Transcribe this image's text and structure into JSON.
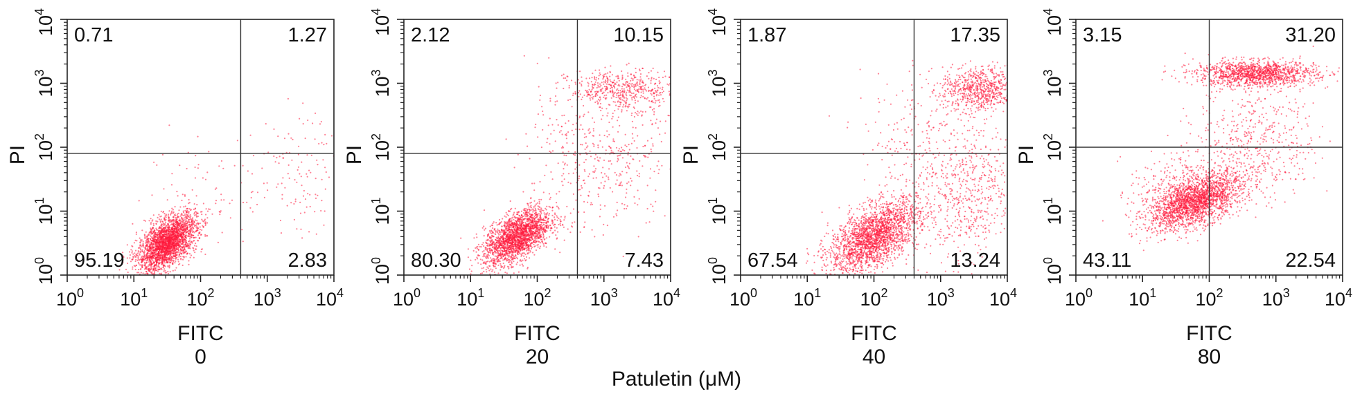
{
  "figure": {
    "xlabel": "Patuletin (μM)"
  },
  "chart_data": [
    {
      "type": "scatter",
      "xlabel": "FITC",
      "ylabel": "PI",
      "condition": "0",
      "xscale": "log",
      "yscale": "log",
      "xlim": [
        1,
        10000
      ],
      "ylim": [
        1,
        10000
      ],
      "xticks": [
        "10⁰",
        "10¹",
        "10²",
        "10³",
        "10⁴"
      ],
      "yticks": [
        "10⁰",
        "10¹",
        "10²",
        "10³",
        "10⁴"
      ],
      "gate": {
        "x": 400,
        "y": 80
      },
      "quadrants": {
        "upper_left": "0.71",
        "upper_right": "1.27",
        "lower_left": "95.19",
        "lower_right": "2.83"
      },
      "point_color": "#ff1a3c"
    },
    {
      "type": "scatter",
      "xlabel": "FITC",
      "ylabel": "PI",
      "condition": "20",
      "xscale": "log",
      "yscale": "log",
      "xlim": [
        1,
        10000
      ],
      "ylim": [
        1,
        10000
      ],
      "xticks": [
        "10⁰",
        "10¹",
        "10²",
        "10³",
        "10⁴"
      ],
      "yticks": [
        "10⁰",
        "10¹",
        "10²",
        "10³",
        "10⁴"
      ],
      "gate": {
        "x": 400,
        "y": 80
      },
      "quadrants": {
        "upper_left": "2.12",
        "upper_right": "10.15",
        "lower_left": "80.30",
        "lower_right": "7.43"
      },
      "point_color": "#ff1a3c"
    },
    {
      "type": "scatter",
      "xlabel": "FITC",
      "ylabel": "PI",
      "condition": "40",
      "xscale": "log",
      "yscale": "log",
      "xlim": [
        1,
        10000
      ],
      "ylim": [
        1,
        10000
      ],
      "xticks": [
        "10⁰",
        "10¹",
        "10²",
        "10³",
        "10⁴"
      ],
      "yticks": [
        "10⁰",
        "10¹",
        "10²",
        "10³",
        "10⁴"
      ],
      "gate": {
        "x": 400,
        "y": 80
      },
      "quadrants": {
        "upper_left": "1.87",
        "upper_right": "17.35",
        "lower_left": "67.54",
        "lower_right": "13.24"
      },
      "point_color": "#ff1a3c"
    },
    {
      "type": "scatter",
      "xlabel": "FITC",
      "ylabel": "PI",
      "condition": "80",
      "xscale": "log",
      "yscale": "log",
      "xlim": [
        1,
        10000
      ],
      "ylim": [
        1,
        10000
      ],
      "xticks": [
        "10⁰",
        "10¹",
        "10²",
        "10³",
        "10⁴"
      ],
      "yticks": [
        "10⁰",
        "10¹",
        "10²",
        "10³",
        "10⁴"
      ],
      "gate": {
        "x": 100,
        "y": 100
      },
      "quadrants": {
        "upper_left": "3.15",
        "upper_right": "31.20",
        "lower_left": "43.11",
        "lower_right": "22.54"
      },
      "point_color": "#ff1a3c"
    }
  ]
}
